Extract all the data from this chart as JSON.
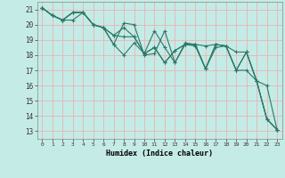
{
  "xlabel": "Humidex (Indice chaleur)",
  "bg_color": "#c5ebe6",
  "plot_bg_color": "#c5ebe6",
  "grid_color": "#e8b4b4",
  "line_color": "#2a7a6a",
  "xlim": [
    -0.5,
    23.5
  ],
  "ylim": [
    12.5,
    21.5
  ],
  "yticks": [
    13,
    14,
    15,
    16,
    17,
    18,
    19,
    20,
    21
  ],
  "xticks": [
    0,
    1,
    2,
    3,
    4,
    5,
    6,
    7,
    8,
    9,
    10,
    11,
    12,
    13,
    14,
    15,
    16,
    17,
    18,
    19,
    20,
    21,
    22,
    23
  ],
  "lines": [
    {
      "x": [
        0,
        1,
        2,
        3,
        4,
        5,
        6,
        7,
        8,
        9,
        10,
        11,
        12,
        13,
        14,
        15,
        16,
        17,
        18,
        19,
        20,
        21,
        22,
        23
      ],
      "y": [
        21.1,
        20.6,
        20.3,
        20.3,
        20.8,
        20.0,
        19.8,
        18.7,
        20.1,
        20.0,
        18.0,
        18.1,
        19.6,
        17.5,
        18.8,
        18.7,
        17.1,
        18.7,
        18.6,
        17.0,
        18.2,
        16.3,
        13.8,
        13.1
      ]
    },
    {
      "x": [
        0,
        1,
        2,
        3,
        4,
        5,
        6,
        7,
        8,
        9,
        10,
        11,
        12,
        13,
        14,
        15,
        16,
        17,
        18,
        19,
        20,
        21,
        22,
        23
      ],
      "y": [
        21.1,
        20.6,
        20.3,
        20.8,
        20.8,
        20.0,
        19.8,
        19.3,
        19.8,
        19.2,
        18.1,
        18.5,
        17.5,
        18.3,
        18.7,
        18.7,
        18.6,
        18.7,
        18.6,
        18.2,
        18.2,
        16.3,
        13.8,
        13.1
      ]
    },
    {
      "x": [
        0,
        1,
        2,
        3,
        4,
        5,
        6,
        7,
        8,
        9,
        10,
        11,
        12,
        13,
        14,
        15,
        16,
        17,
        18,
        19,
        20,
        21,
        22,
        23
      ],
      "y": [
        21.1,
        20.6,
        20.3,
        20.8,
        20.8,
        20.0,
        19.8,
        19.3,
        19.2,
        19.2,
        18.1,
        19.6,
        18.5,
        17.5,
        18.7,
        18.7,
        17.1,
        18.7,
        18.6,
        17.0,
        18.2,
        16.3,
        16.0,
        13.1
      ]
    },
    {
      "x": [
        0,
        1,
        2,
        3,
        4,
        5,
        6,
        7,
        8,
        9,
        10,
        11,
        12,
        13,
        14,
        15,
        16,
        17,
        18,
        19,
        20,
        21,
        22,
        23
      ],
      "y": [
        21.1,
        20.6,
        20.3,
        20.8,
        20.8,
        20.0,
        19.8,
        18.7,
        18.0,
        18.8,
        18.1,
        18.5,
        17.5,
        18.3,
        18.7,
        18.6,
        17.1,
        18.5,
        18.6,
        17.0,
        17.0,
        16.3,
        13.8,
        13.1
      ]
    }
  ]
}
